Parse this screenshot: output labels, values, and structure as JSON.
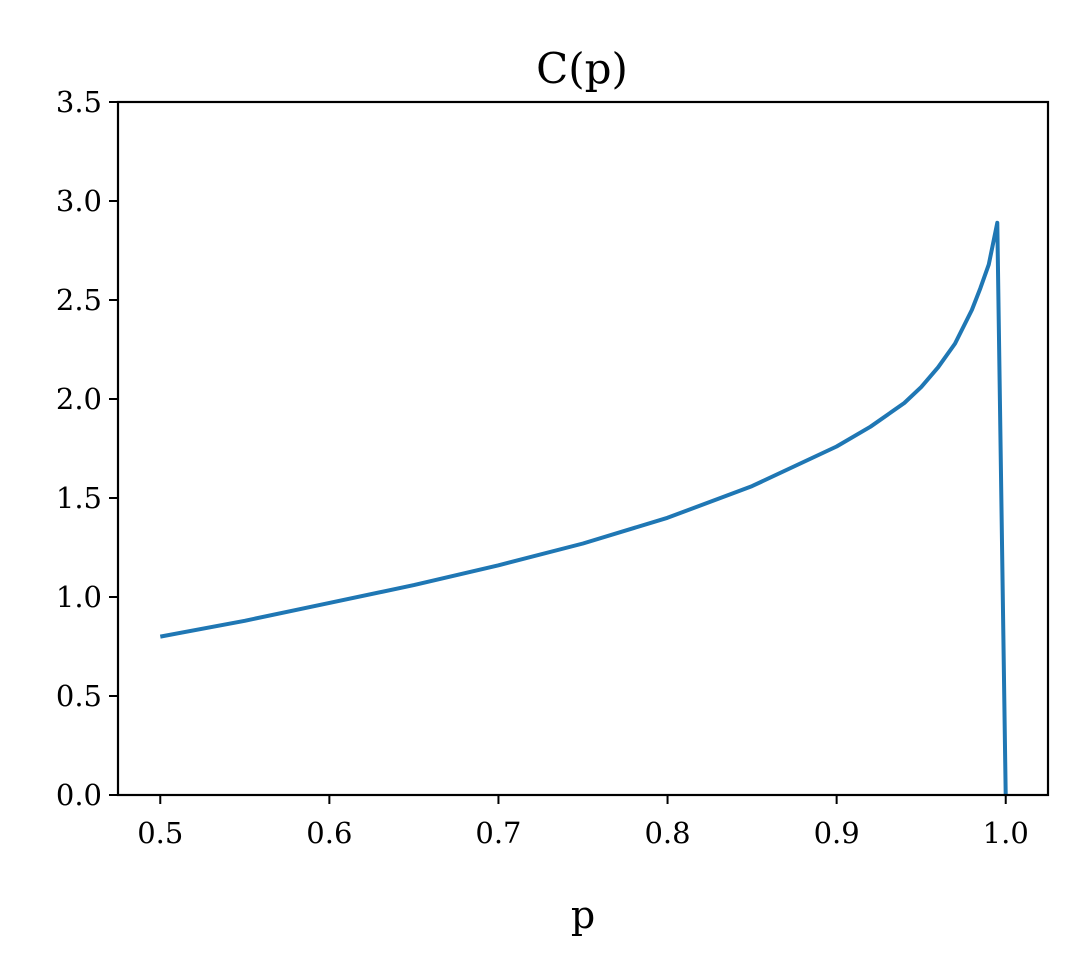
{
  "chart_data": {
    "type": "line",
    "title": "C(p)",
    "xlabel": "p",
    "ylabel": "",
    "xlim": [
      0.475,
      1.025
    ],
    "ylim": [
      0.0,
      3.5
    ],
    "x_ticks": [
      "0.5",
      "0.6",
      "0.7",
      "0.8",
      "0.9",
      "1.0"
    ],
    "y_ticks": [
      "0.0",
      "0.5",
      "1.0",
      "1.5",
      "2.0",
      "2.5",
      "3.0",
      "3.5"
    ],
    "grid": false,
    "legend": false,
    "colors": {
      "line": "#1f77b4",
      "axes": "#000000"
    },
    "series": [
      {
        "x": [
          0.5,
          0.55,
          0.6,
          0.65,
          0.7,
          0.75,
          0.8,
          0.85,
          0.9,
          0.92,
          0.94,
          0.95,
          0.96,
          0.97,
          0.98,
          0.985,
          0.99,
          0.995,
          1.0
        ],
        "values": [
          0.8,
          0.88,
          0.97,
          1.06,
          1.16,
          1.27,
          1.4,
          1.56,
          1.76,
          1.86,
          1.98,
          2.06,
          2.16,
          2.28,
          2.45,
          2.56,
          2.68,
          2.89,
          0.0
        ]
      }
    ]
  }
}
